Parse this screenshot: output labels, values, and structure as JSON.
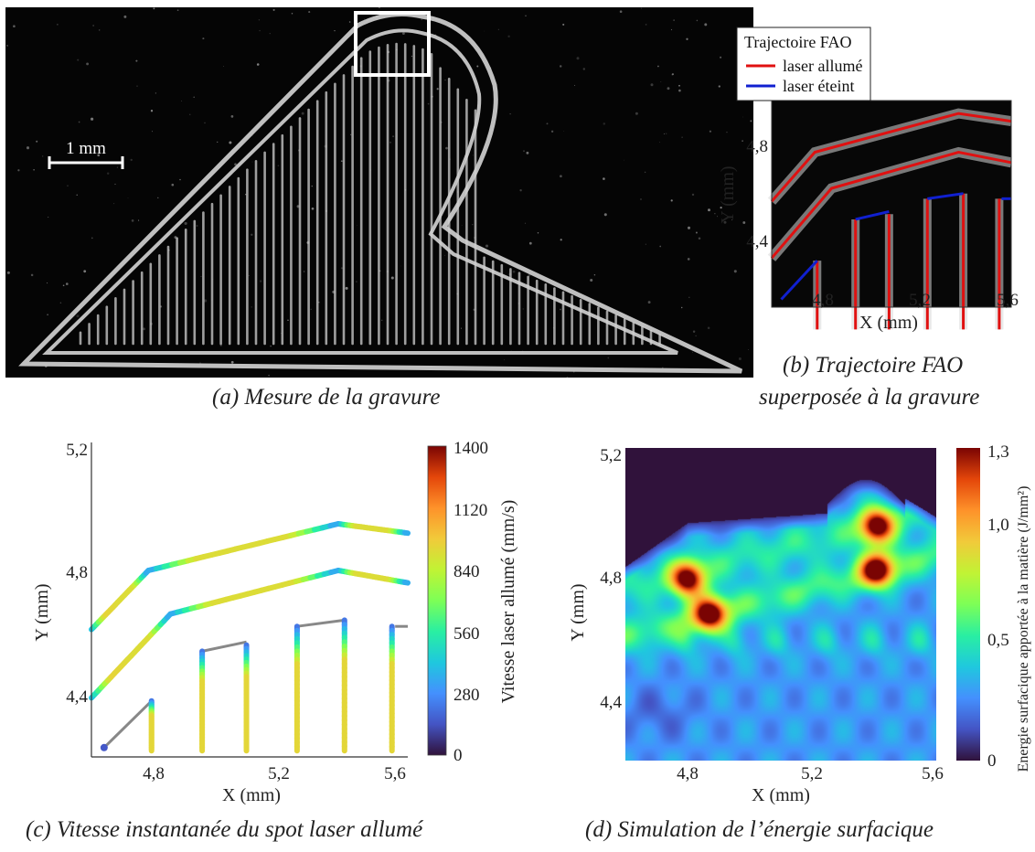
{
  "colors": {
    "laser_on": "#e01010",
    "laser_off": "#1020d0",
    "engraving_bg": "#050505"
  },
  "panel_a": {
    "caption": "(a) Mesure de la gravure",
    "scale_bar_label": "1 mm"
  },
  "panel_b": {
    "caption_line1": "(b) Trajectoire FAO",
    "caption_line2": "superposée à la gravure",
    "legend_title": "Trajectoire FAO",
    "legend_on": "laser allumé",
    "legend_off": "laser éteint",
    "xlabel": "X (mm)",
    "ylabel": "Y (mm)",
    "x_ticks": [
      "4,8",
      "5,2",
      "5,6"
    ],
    "y_ticks": [
      "4,8",
      "4,4"
    ]
  },
  "panel_c": {
    "caption": "(c) Vitesse instantanée du spot laser allumé",
    "xlabel": "X (mm)",
    "ylabel": "Y (mm)",
    "x_ticks": [
      "4,8",
      "5,2",
      "5,6"
    ],
    "y_ticks": [
      "5,2",
      "4,8",
      "4,4"
    ],
    "colorbar_label": "Vitesse laser allumé (mm/s)",
    "colorbar_ticks": [
      "1400",
      "1120",
      "840",
      "560",
      "280",
      "0"
    ]
  },
  "panel_d": {
    "caption": "(d) Simulation de l’énergie surfacique",
    "xlabel": "X (mm)",
    "ylabel": "Y (mm)",
    "x_ticks": [
      "4,8",
      "5,2",
      "5,6"
    ],
    "y_ticks": [
      "5,2",
      "4,8",
      "4,4"
    ],
    "colorbar_label": "Energie surfacique apportée à la matière (J/mm²)",
    "colorbar_ticks": [
      "1,3",
      "1,0",
      "0,5",
      "0"
    ]
  },
  "chart_data": [
    {
      "type": "line",
      "panel": "c",
      "xlabel": "X (mm)",
      "ylabel": "Y (mm)",
      "xlim": [
        4.6,
        5.6
      ],
      "ylim": [
        4.2,
        5.2
      ],
      "colorbar": {
        "label": "Vitesse laser allumé (mm/s)",
        "range": [
          0,
          1400
        ]
      },
      "paths": [
        {
          "points": [
            [
              4.6,
              4.61
            ],
            [
              4.78,
              4.8
            ],
            [
              5.38,
              4.95
            ],
            [
              5.6,
              4.92
            ]
          ],
          "speeds": [
            900,
            550,
            900,
            300,
            850
          ]
        },
        {
          "points": [
            [
              4.6,
              4.39
            ],
            [
              4.85,
              4.66
            ],
            [
              5.38,
              4.8
            ],
            [
              5.6,
              4.76
            ]
          ],
          "speeds": [
            900,
            550,
            900,
            300,
            850
          ]
        }
      ],
      "segments": [
        {
          "x": 4.79,
          "y_bottom": 4.22,
          "y_top": 4.38
        },
        {
          "x": 4.95,
          "y_bottom": 4.22,
          "y_top": 4.54
        },
        {
          "x": 5.09,
          "y_bottom": 4.22,
          "y_top": 4.56
        },
        {
          "x": 5.25,
          "y_bottom": 4.22,
          "y_top": 4.62
        },
        {
          "x": 5.4,
          "y_bottom": 4.22,
          "y_top": 4.64
        },
        {
          "x": 5.55,
          "y_bottom": 4.22,
          "y_top": 4.62
        }
      ],
      "off_moves": [
        [
          [
            4.64,
            4.23
          ],
          [
            4.79,
            4.38
          ]
        ],
        [
          [
            4.95,
            4.54
          ],
          [
            5.09,
            4.57
          ]
        ],
        [
          [
            5.25,
            4.62
          ],
          [
            5.4,
            4.64
          ]
        ],
        [
          [
            5.56,
            4.62
          ],
          [
            5.6,
            4.62
          ]
        ]
      ]
    },
    {
      "type": "heatmap",
      "panel": "d",
      "xlabel": "X (mm)",
      "ylabel": "Y (mm)",
      "xlim": [
        4.6,
        5.6
      ],
      "ylim": [
        4.2,
        5.2
      ],
      "colorbar": {
        "label": "Energie surfacique apportée à la matière (J/mm²)",
        "range": [
          0,
          1.3
        ]
      },
      "hotspots": [
        {
          "x": 4.8,
          "y": 4.78,
          "value": 1.3
        },
        {
          "x": 4.87,
          "y": 4.67,
          "value": 1.3
        },
        {
          "x": 5.41,
          "y": 4.95,
          "value": 1.3
        },
        {
          "x": 5.41,
          "y": 4.81,
          "value": 1.3
        }
      ]
    }
  ]
}
